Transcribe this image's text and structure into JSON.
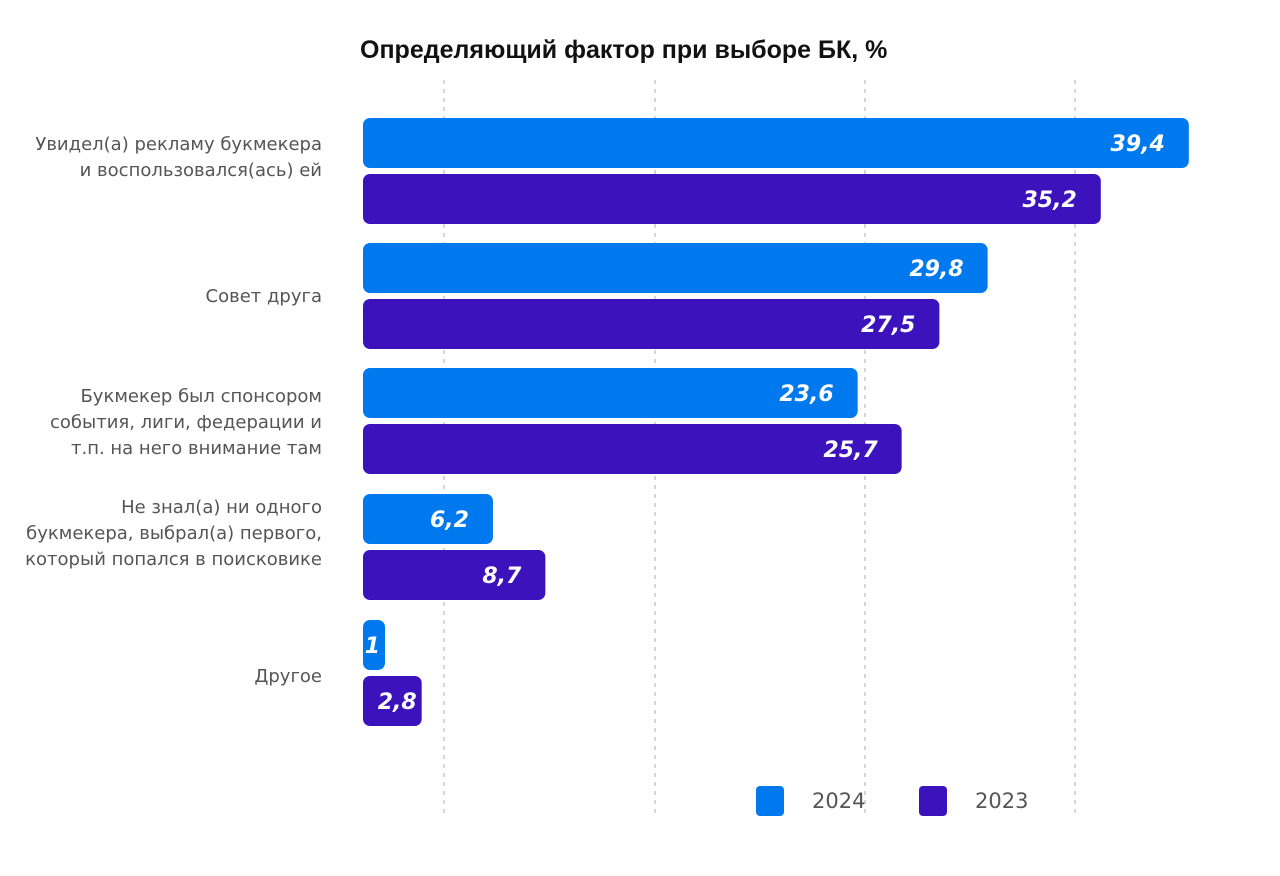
{
  "chart_data": {
    "type": "bar",
    "orientation": "horizontal",
    "title": "Определяющий фактор при выборе БК, %",
    "categories": [
      "Увидел(а) рекламу букмекера и воспользовался(ась) ей",
      "Совет друга",
      "Букмекер был спонсором события, лиги, федерации и т.п. на него внимание там",
      "Не знал(а) ни одного букмекера, выбрал(а) первого, который попался в поисковике",
      "Другое"
    ],
    "series": [
      {
        "name": "2024",
        "color": "#0079EE",
        "values": [
          39.4,
          29.8,
          23.6,
          6.2,
          1
        ],
        "labels": [
          "39,4",
          "29,8",
          "23,6",
          "6,2",
          "1"
        ]
      },
      {
        "name": "2023",
        "color": "#3B12BC",
        "values": [
          35.2,
          27.5,
          25.7,
          8.7,
          2.8
        ],
        "labels": [
          "35,2",
          "27,5",
          "25,7",
          "8,7",
          "2,8"
        ]
      }
    ],
    "xlim": [
      0,
      40
    ],
    "grid": true,
    "legend_position": "bottom-right"
  }
}
